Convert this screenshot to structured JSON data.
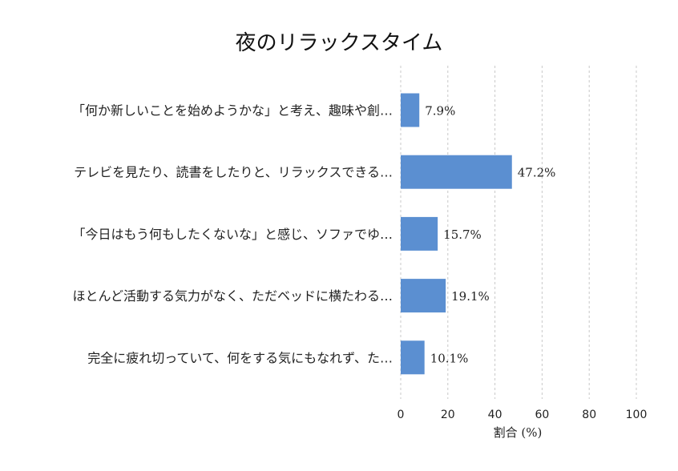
{
  "chart_data": {
    "type": "bar",
    "orientation": "horizontal",
    "title": "夜のリラックスタイム",
    "xlabel": "割合 (%)",
    "ylabel": "",
    "xlim": [
      0,
      100
    ],
    "xticks": [
      0,
      20,
      40,
      60,
      80,
      100
    ],
    "grid": true,
    "categories": [
      "「何か新しいことを始めようかな」と考え、趣味や創…",
      "テレビを見たり、読書をしたりと、リラックスできる…",
      "「今日はもう何もしたくないな」と感じ、ソファでゆ…",
      "ほとんど活動する気力がなく、ただベッドに横たわる…",
      "完全に疲れ切っていて、何をする気にもなれず、た…"
    ],
    "values": [
      7.9,
      47.2,
      15.7,
      19.1,
      10.1
    ],
    "value_labels": [
      "7.9%",
      "47.2%",
      "15.7%",
      "19.1%",
      "10.1%"
    ],
    "bar_color": "#5b8fd1"
  }
}
